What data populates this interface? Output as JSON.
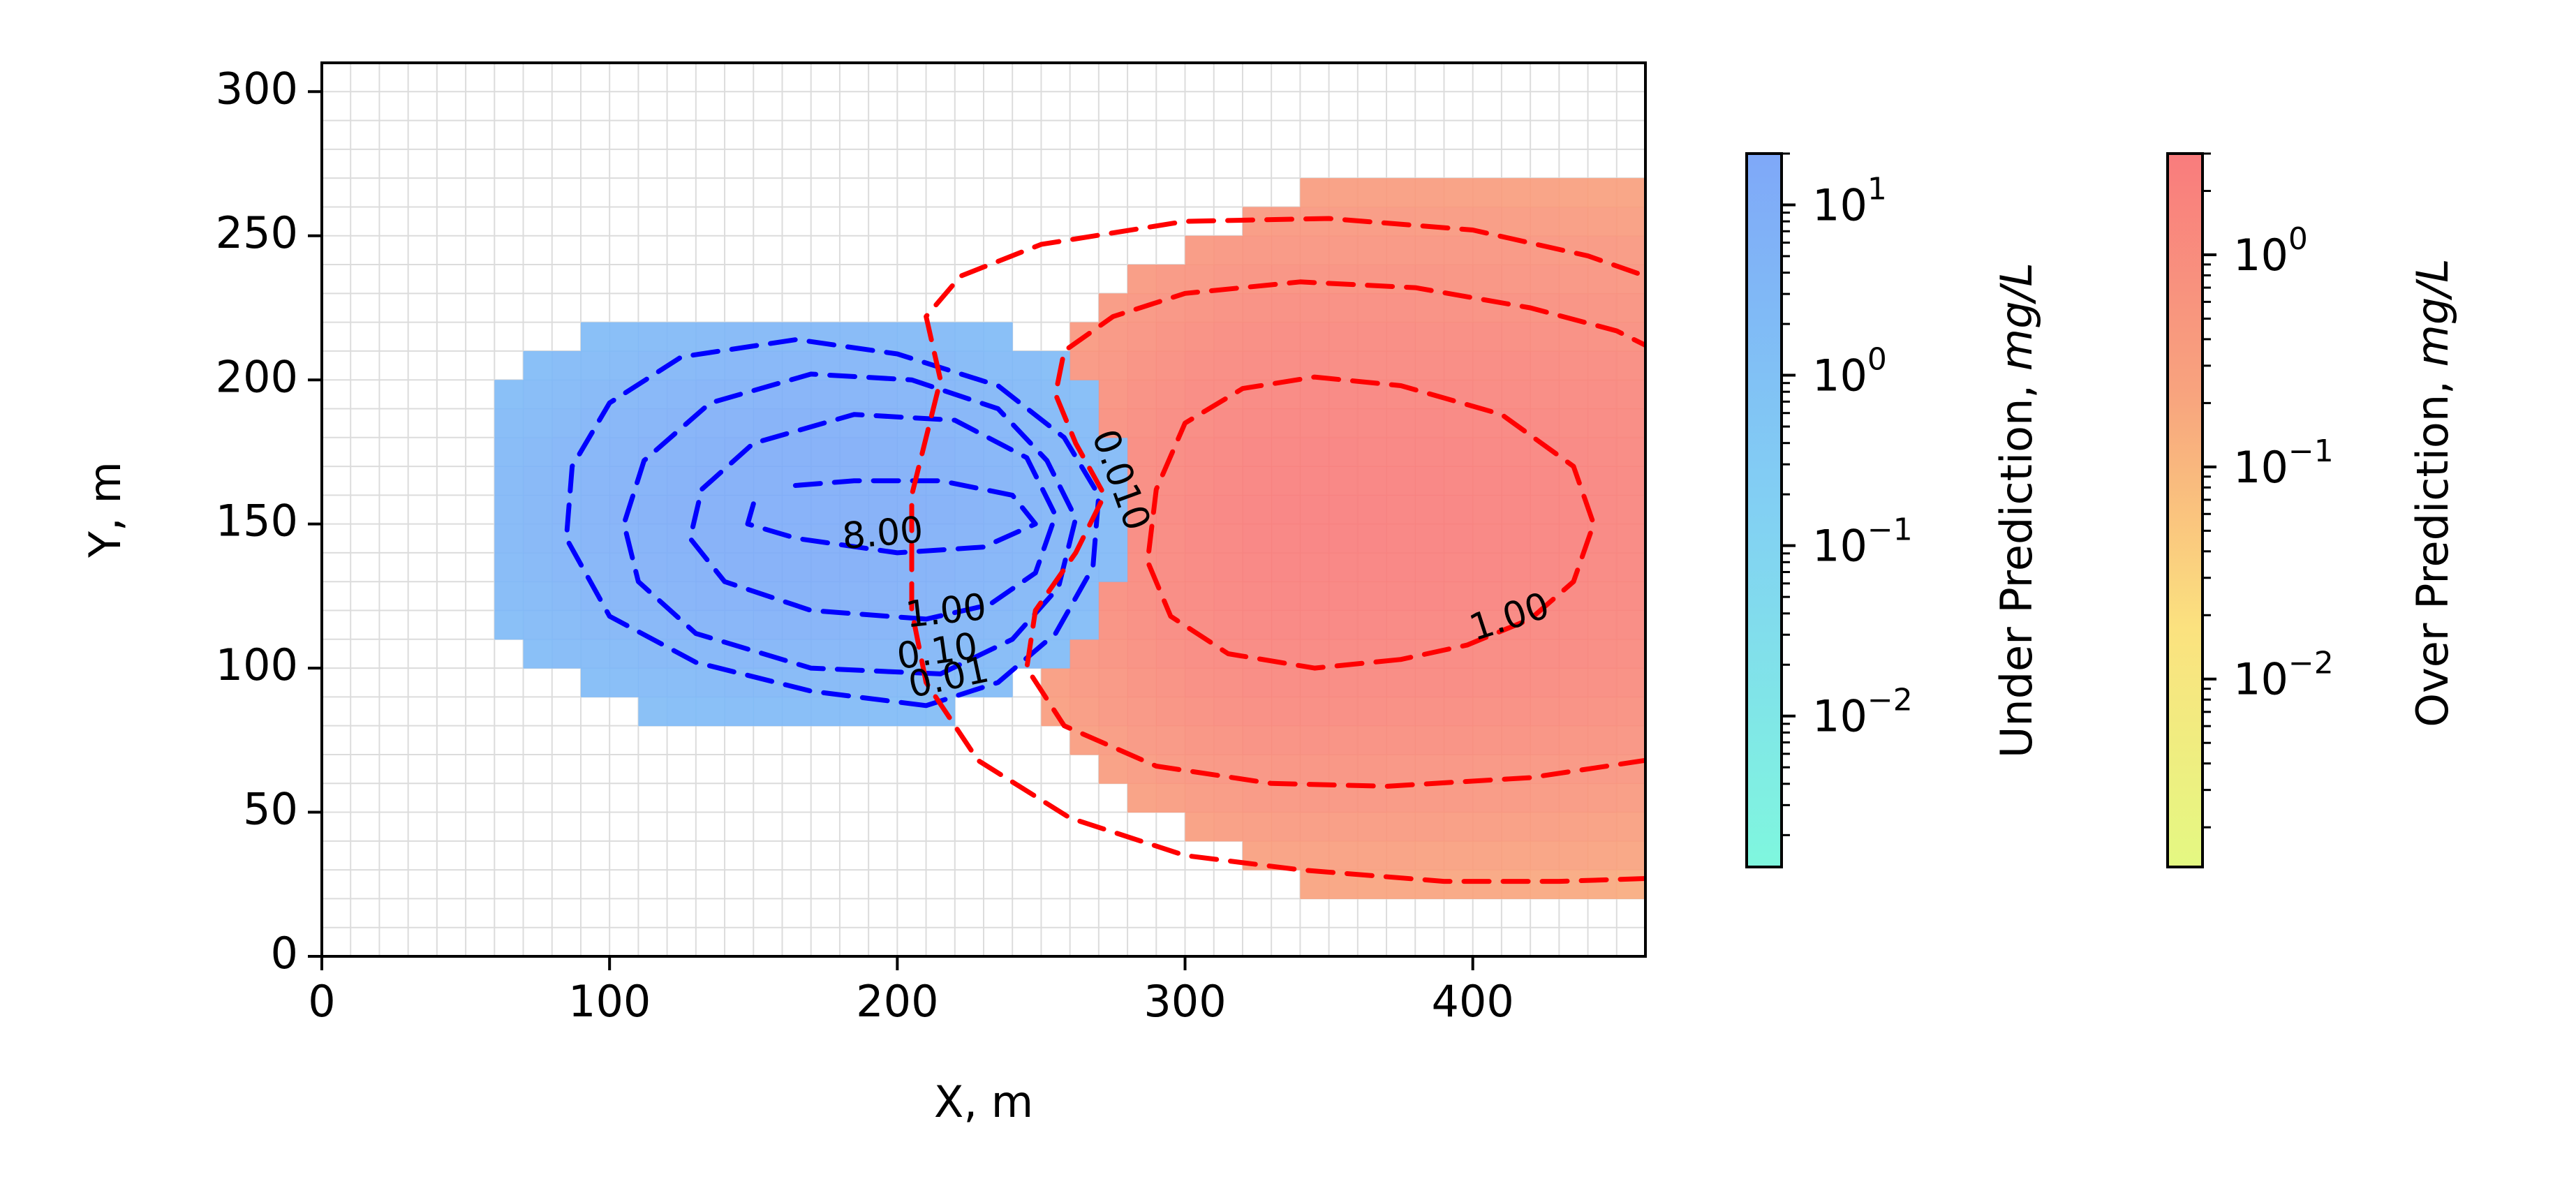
{
  "chart_data": {
    "type": "heatmap",
    "xlabel": "X, m",
    "ylabel": "Y, m",
    "xlim": [
      0,
      460
    ],
    "ylim": [
      0,
      310
    ],
    "xticks": [
      0,
      100,
      200,
      300,
      400
    ],
    "yticks": [
      0,
      50,
      100,
      150,
      200,
      250,
      300
    ],
    "grid": true,
    "grid_cell_m": 10,
    "colorbars": [
      {
        "label_prefix": "Under Prediction, ",
        "label_unit": "mg/L",
        "scale": "log",
        "range": [
          0.0013,
          20
        ],
        "ticks": [
          {
            "base": "10",
            "exp": "1",
            "value": 10
          },
          {
            "base": "10",
            "exp": "0",
            "value": 1
          },
          {
            "base": "10",
            "exp": "−1",
            "value": 0.1
          },
          {
            "base": "10",
            "exp": "−2",
            "value": 0.01
          }
        ],
        "colors": [
          "#7ff7de",
          "#82d0f3",
          "#7fa8f8"
        ]
      },
      {
        "label_prefix": "Over Prediction, ",
        "label_unit": "mg/L",
        "scale": "log",
        "range": [
          0.0013,
          3
        ],
        "ticks": [
          {
            "base": "10",
            "exp": "0",
            "value": 1
          },
          {
            "base": "10",
            "exp": "−1",
            "value": 0.1
          },
          {
            "base": "10",
            "exp": "−2",
            "value": 0.01
          }
        ],
        "colors": [
          "#e4f882",
          "#fbe27f",
          "#f8a37e",
          "#f97c7d"
        ]
      }
    ],
    "series": [
      {
        "kind": "under_prediction",
        "field_extent_x": [
          60,
          280
        ],
        "field_extent_y": [
          80,
          220
        ],
        "peak_xy": [
          165,
          155
        ],
        "contour_color": "#0000ff",
        "contours": [
          {
            "level": 0.01,
            "label": "0.01",
            "label_xy": [
              218,
              96
            ],
            "label_angle": -12,
            "points": [
              [
                210,
                87
              ],
              [
                170,
                92
              ],
              [
                130,
                102
              ],
              [
                100,
                118
              ],
              [
                85,
                145
              ],
              [
                87,
                170
              ],
              [
                100,
                192
              ],
              [
                125,
                208
              ],
              [
                165,
                214
              ],
              [
                200,
                209
              ],
              [
                235,
                198
              ],
              [
                258,
                180
              ],
              [
                270,
                160
              ],
              [
                268,
                135
              ],
              [
                255,
                112
              ],
              [
                235,
                95
              ],
              [
                210,
                87
              ]
            ]
          },
          {
            "level": 0.1,
            "label": "0.10",
            "label_xy": [
              214,
              105
            ],
            "label_angle": -8,
            "points": [
              [
                215,
                98
              ],
              [
                170,
                100
              ],
              [
                130,
                112
              ],
              [
                110,
                130
              ],
              [
                105,
                150
              ],
              [
                112,
                172
              ],
              [
                135,
                192
              ],
              [
                170,
                202
              ],
              [
                205,
                200
              ],
              [
                235,
                190
              ],
              [
                252,
                172
              ],
              [
                262,
                152
              ],
              [
                256,
                128
              ],
              [
                240,
                110
              ],
              [
                215,
                98
              ]
            ]
          },
          {
            "level": 1.0,
            "label": "1.00",
            "label_xy": [
              217,
              119
            ],
            "label_angle": -6,
            "points": [
              [
                210,
                117
              ],
              [
                170,
                120
              ],
              [
                140,
                130
              ],
              [
                128,
                145
              ],
              [
                132,
                162
              ],
              [
                150,
                178
              ],
              [
                185,
                188
              ],
              [
                220,
                186
              ],
              [
                245,
                173
              ],
              [
                255,
                153
              ],
              [
                248,
                133
              ],
              [
                232,
                122
              ],
              [
                210,
                117
              ]
            ]
          },
          {
            "level": 8.0,
            "label": "8.00",
            "label_xy": [
              195,
              146
            ],
            "label_angle": -5,
            "points": [
              [
                150,
                157
              ],
              [
                148,
                150
              ],
              [
                165,
                145
              ],
              [
                200,
                140
              ],
              [
                230,
                142
              ],
              [
                248,
                150
              ],
              [
                240,
                160
              ],
              [
                215,
                165
              ],
              [
                185,
                165
              ],
              [
                160,
                163
              ]
            ]
          }
        ]
      },
      {
        "kind": "over_prediction",
        "field_extent_x": [
          210,
          460
        ],
        "field_extent_y": [
          0,
          270
        ],
        "peak_xy": [
          345,
          152
        ],
        "contour_color": "#ff0000",
        "contours": [
          {
            "level": 0.001,
            "label": "",
            "label_xy": [
              0,
              0
            ],
            "label_angle": 0,
            "points": [
              [
                460,
                27
              ],
              [
                430,
                26
              ],
              [
                390,
                26
              ],
              [
                340,
                30
              ],
              [
                300,
                35
              ],
              [
                260,
                48
              ],
              [
                228,
                68
              ],
              [
                210,
                95
              ],
              [
                205,
                120
              ],
              [
                205,
                160
              ],
              [
                215,
                200
              ],
              [
                210,
                222
              ],
              [
                222,
                236
              ],
              [
                250,
                247
              ],
              [
                300,
                255
              ],
              [
                350,
                256
              ],
              [
                400,
                252
              ],
              [
                440,
                243
              ],
              [
                460,
                236
              ]
            ]
          },
          {
            "level": 0.01,
            "label": "0.010",
            "label_xy": [
              277,
              165
            ],
            "label_angle": 70,
            "points": [
              [
                460,
                68
              ],
              [
                420,
                62
              ],
              [
                370,
                59
              ],
              [
                330,
                60
              ],
              [
                290,
                66
              ],
              [
                258,
                80
              ],
              [
                245,
                100
              ],
              [
                248,
                120
              ],
              [
                262,
                140
              ],
              [
                272,
                160
              ],
              [
                262,
                178
              ],
              [
                255,
                195
              ],
              [
                258,
                210
              ],
              [
                275,
                222
              ],
              [
                300,
                230
              ],
              [
                340,
                234
              ],
              [
                380,
                232
              ],
              [
                420,
                225
              ],
              [
                450,
                217
              ],
              [
                460,
                212
              ]
            ]
          },
          {
            "level": 1.0,
            "label": "1.00",
            "label_xy": [
              413,
              117
            ],
            "label_angle": -18,
            "points": [
              [
                375,
                103
              ],
              [
                345,
                100
              ],
              [
                315,
                105
              ],
              [
                295,
                118
              ],
              [
                287,
                137
              ],
              [
                290,
                162
              ],
              [
                300,
                185
              ],
              [
                320,
                197
              ],
              [
                345,
                201
              ],
              [
                375,
                198
              ],
              [
                410,
                188
              ],
              [
                435,
                170
              ],
              [
                442,
                150
              ],
              [
                435,
                130
              ],
              [
                420,
                117
              ],
              [
                398,
                108
              ],
              [
                375,
                103
              ]
            ]
          }
        ]
      }
    ]
  }
}
